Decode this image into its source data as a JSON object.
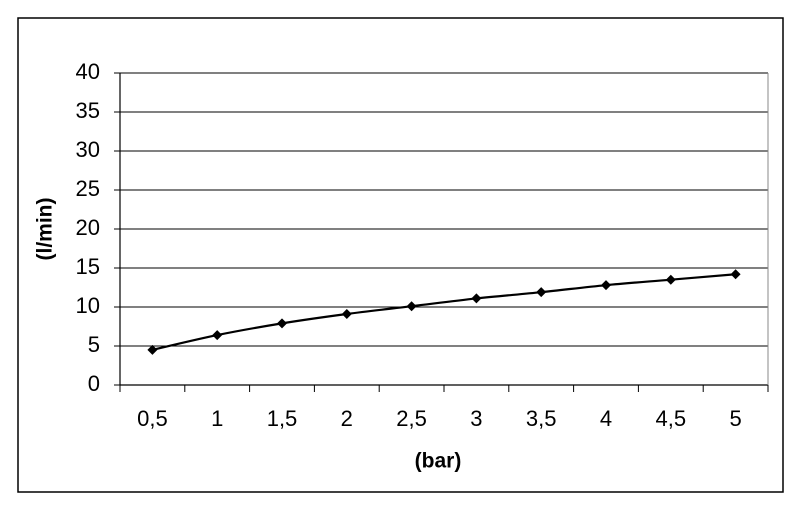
{
  "chart_data": {
    "type": "line",
    "x_label": "(bar)",
    "y_label": "(l/min)",
    "categories": [
      "0,5",
      "1",
      "1,5",
      "2",
      "2,5",
      "3",
      "3,5",
      "4",
      "4,5",
      "5"
    ],
    "values": [
      4.5,
      6.4,
      7.9,
      9.1,
      10.1,
      11.1,
      11.9,
      12.8,
      13.5,
      14.2
    ],
    "color": "#000000",
    "ylim": [
      0,
      40
    ],
    "yticks": [
      0,
      5,
      10,
      15,
      20,
      25,
      30,
      35,
      40
    ],
    "grid": true
  }
}
